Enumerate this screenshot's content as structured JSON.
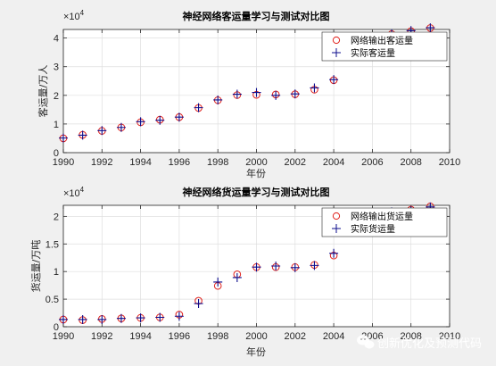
{
  "chart_data": [
    {
      "type": "scatter",
      "title": "神经网络客运量学习与测试对比图",
      "xlabel": "年份",
      "ylabel": "客运量/万人",
      "exponent": "×10",
      "exponent_power": "4",
      "xlim": [
        1990,
        2010
      ],
      "ylim": [
        0,
        4.3
      ],
      "xticks": [
        1990,
        1992,
        1994,
        1996,
        1998,
        2000,
        2002,
        2004,
        2006,
        2008,
        2010
      ],
      "yticks": [
        0,
        1,
        2,
        3,
        4
      ],
      "ytick_labels": [
        "0",
        "1",
        "2",
        "3",
        "4"
      ],
      "grid": true,
      "legend_position": "top-right",
      "series": [
        {
          "name": "网络输出客运量",
          "marker": "circle",
          "color": "#e0201b",
          "x": [
            1990,
            1991,
            1992,
            1993,
            1994,
            1995,
            1996,
            1997,
            1998,
            1999,
            2000,
            2001,
            2002,
            2003,
            2004,
            2007,
            2008,
            2009
          ],
          "y": [
            0.5,
            0.62,
            0.76,
            0.88,
            1.06,
            1.15,
            1.24,
            1.56,
            1.83,
            2.01,
            2.02,
            2.03,
            2.04,
            2.2,
            2.53,
            4.14,
            4.24,
            4.35
          ]
        },
        {
          "name": "实际客运量",
          "marker": "plus",
          "color": "#0d0d8c",
          "x": [
            1990,
            1991,
            1992,
            1993,
            1994,
            1995,
            1996,
            1997,
            1998,
            1999,
            2000,
            2001,
            2002,
            2003,
            2004,
            2007,
            2008,
            2009
          ],
          "y": [
            0.51,
            0.61,
            0.77,
            0.88,
            1.08,
            1.13,
            1.24,
            1.57,
            1.84,
            2.04,
            2.1,
            2.0,
            2.05,
            2.26,
            2.55,
            4.15,
            4.26,
            4.36
          ]
        }
      ]
    },
    {
      "type": "scatter",
      "title": "神经网络货运量学习与测试对比图",
      "xlabel": "年份",
      "ylabel": "货运量/万吨",
      "exponent": "×10",
      "exponent_power": "4",
      "xlim": [
        1990,
        2010
      ],
      "ylim": [
        0,
        2.2
      ],
      "xticks": [
        1990,
        1992,
        1994,
        1996,
        1998,
        2000,
        2002,
        2004,
        2006,
        2008,
        2010
      ],
      "yticks": [
        0,
        0.5,
        1,
        1.5,
        2
      ],
      "ytick_labels": [
        "0",
        "0.5",
        "1",
        "1.5",
        "2"
      ],
      "grid": true,
      "legend_position": "top-right",
      "series": [
        {
          "name": "网络输出货运量",
          "marker": "circle",
          "color": "#e0201b",
          "x": [
            1990,
            1991,
            1992,
            1993,
            1994,
            1995,
            1996,
            1997,
            1998,
            1999,
            2000,
            2001,
            2002,
            2003,
            2004,
            2007,
            2008,
            2009
          ],
          "y": [
            0.13,
            0.12,
            0.14,
            0.15,
            0.16,
            0.17,
            0.22,
            0.47,
            0.74,
            0.95,
            1.08,
            1.08,
            1.08,
            1.12,
            1.29,
            2.07,
            2.12,
            2.18
          ]
        },
        {
          "name": "实际货运量",
          "marker": "plus",
          "color": "#0d0d8c",
          "x": [
            1990,
            1991,
            1992,
            1993,
            1994,
            1995,
            1996,
            1997,
            1998,
            1999,
            2000,
            2001,
            2002,
            2003,
            2004,
            2007,
            2008,
            2009
          ],
          "y": [
            0.13,
            0.13,
            0.13,
            0.15,
            0.16,
            0.17,
            0.19,
            0.42,
            0.81,
            0.89,
            1.08,
            1.1,
            1.07,
            1.11,
            1.33,
            2.08,
            2.1,
            2.17
          ]
        }
      ]
    }
  ],
  "watermark": {
    "text": "创新优化及预测代码",
    "icon": "wechat-icon"
  }
}
